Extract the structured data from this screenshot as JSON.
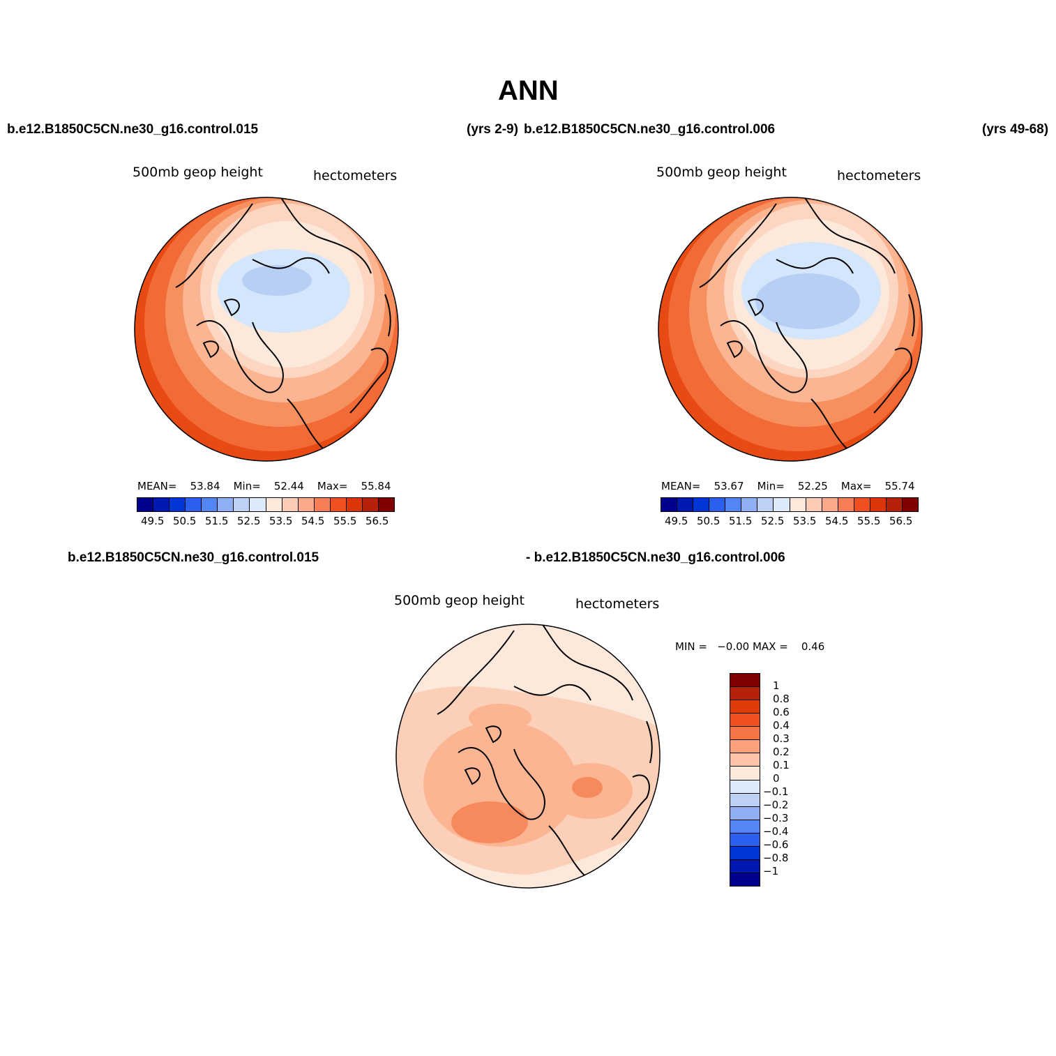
{
  "title": "ANN",
  "top_left": {
    "case": "b.e12.B1850C5CN.ne30_g16.control.015",
    "variable": "500mb geop height",
    "units": "hectometers",
    "stats": {
      "mean_label": "MEAN=",
      "mean": "53.84",
      "min_label": "Min=",
      "min": "52.44",
      "max_label": "Max=",
      "max": "55.84"
    }
  },
  "top_mid_years": "(yrs 2-9)",
  "top_right": {
    "case": "b.e12.B1850C5CN.ne30_g16.control.006",
    "years": "(yrs 49-68)",
    "variable": "500mb geop height",
    "units": "hectometers",
    "stats": {
      "mean_label": "MEAN=",
      "mean": "53.67",
      "min_label": "Min=",
      "min": "52.25",
      "max_label": "Max=",
      "max": "55.74"
    }
  },
  "diff": {
    "case_a": "b.e12.B1850C5CN.ne30_g16.control.015",
    "case_b": "- b.e12.B1850C5CN.ne30_g16.control.006",
    "variable": "500mb geop height",
    "units": "hectometers",
    "minmax": "MIN =   −0.00 MAX =    0.46"
  },
  "colorbar_h": {
    "colors": [
      "#00008c",
      "#0019b0",
      "#0036d8",
      "#2a5fef",
      "#5286f5",
      "#8fb0f5",
      "#bdd1f7",
      "#dceaf9",
      "#fde9db",
      "#fccbb6",
      "#fba98b",
      "#f77f55",
      "#f0501f",
      "#db3509",
      "#b52209",
      "#800000"
    ],
    "labels": [
      "49.5",
      "50.5",
      "51.5",
      "52.5",
      "53.5",
      "54.5",
      "55.5",
      "56.5"
    ]
  },
  "colorbar_v": {
    "colors": [
      "#800000",
      "#b52209",
      "#de3b08",
      "#f0501f",
      "#f77447",
      "#fba07a",
      "#fcc3a6",
      "#fde9db",
      "#dceaf9",
      "#bdd1f7",
      "#8fb0f5",
      "#5286f5",
      "#2a5fef",
      "#0036d8",
      "#0019b0",
      "#00008c"
    ],
    "labels": [
      "1",
      "0.8",
      "0.6",
      "0.4",
      "0.3",
      "0.2",
      "0.1",
      "0",
      "−0.1",
      "−0.2",
      "−0.3",
      "−0.4",
      "−0.6",
      "−0.8",
      "−1"
    ]
  },
  "map_colors": {
    "r1": "#e84a13",
    "r2": "#f26a35",
    "r3": "#f7905f",
    "r4": "#fbb593",
    "r5": "#fdd6c1",
    "r6": "#fde9db",
    "b1": "#d4e6fb",
    "b2": "#b8cff5",
    "d_base": "#fde9db",
    "d1": "#fcd0b8",
    "d2": "#fbb593",
    "d3": "#f78a5c"
  }
}
